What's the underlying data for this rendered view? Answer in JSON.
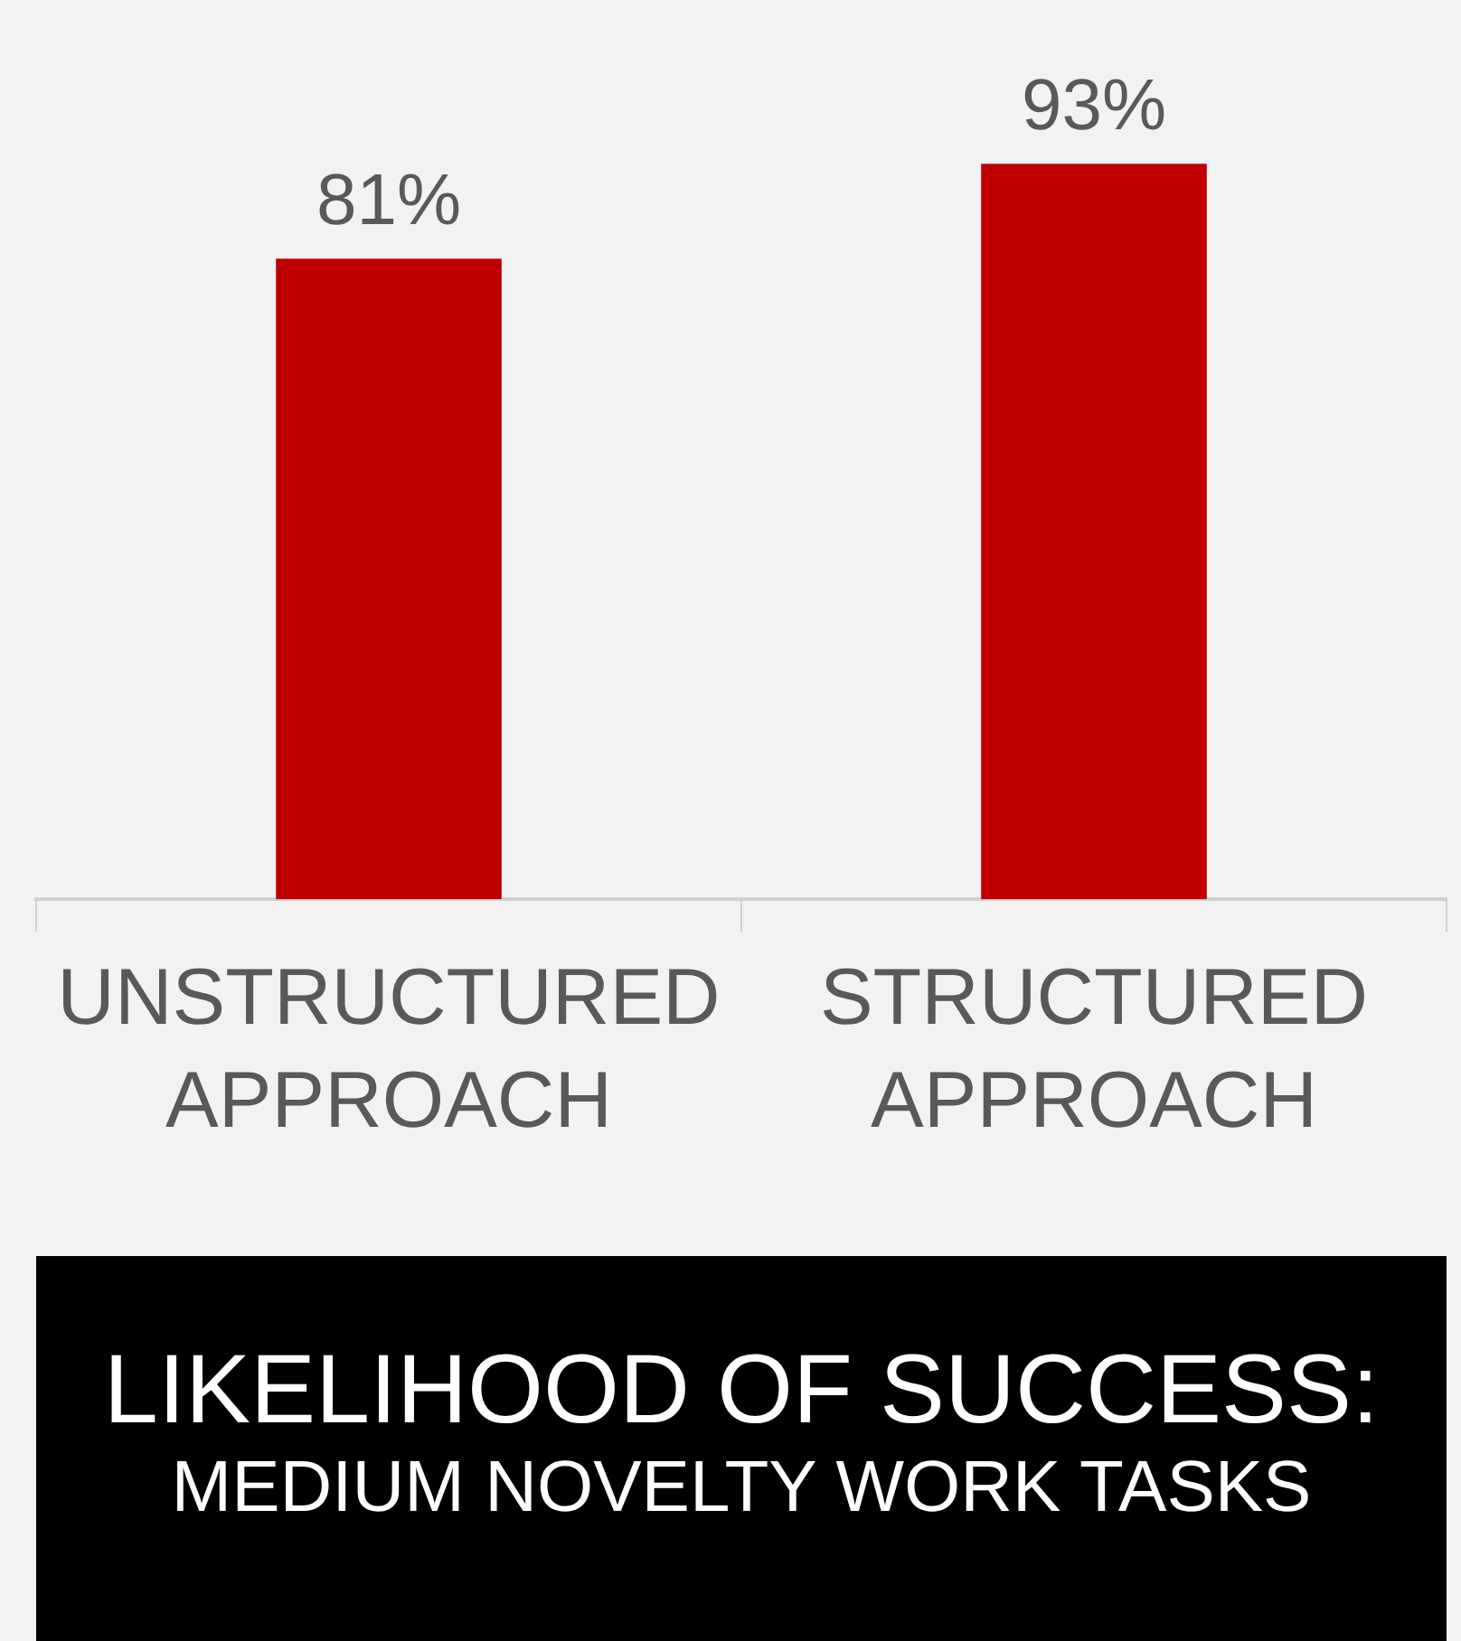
{
  "chart_data": {
    "type": "bar",
    "title": "LIKELIHOOD OF SUCCESS:",
    "subtitle": "MEDIUM NOVELTY WORK TASKS",
    "categories": [
      "UNSTRUCTURED APPROACH",
      "STRUCTURED APPROACH"
    ],
    "values": [
      81,
      93
    ],
    "value_labels": [
      "81%",
      "93%"
    ],
    "color": "#c00000",
    "grid": false,
    "legend": false,
    "tick_labels": "x"
  }
}
